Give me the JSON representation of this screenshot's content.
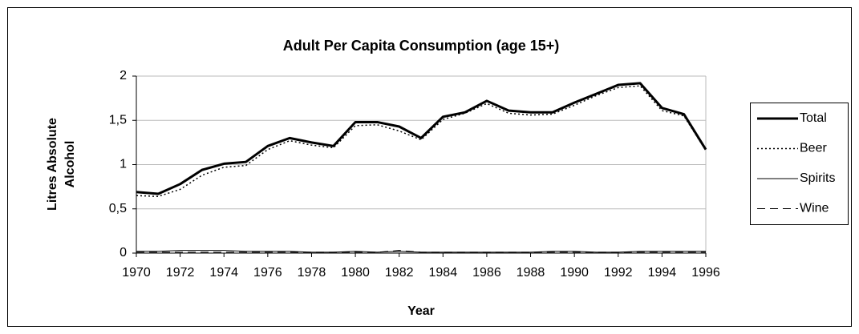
{
  "chart_data": {
    "type": "line",
    "title": "Adult Per Capita Consumption (age 15+)",
    "xlabel": "Year",
    "ylabel": [
      "Litres Absolute",
      "Alcohol"
    ],
    "x": [
      1970,
      1971,
      1972,
      1973,
      1974,
      1975,
      1976,
      1977,
      1978,
      1979,
      1980,
      1981,
      1982,
      1983,
      1984,
      1985,
      1986,
      1987,
      1988,
      1989,
      1990,
      1991,
      1992,
      1993,
      1994,
      1995,
      1996
    ],
    "xlim": [
      1970,
      1996
    ],
    "xticks": [
      1970,
      1972,
      1974,
      1976,
      1978,
      1980,
      1982,
      1984,
      1986,
      1988,
      1990,
      1992,
      1994,
      1996
    ],
    "ylim": [
      0,
      2
    ],
    "yticks": [
      0,
      {
        "value": 0.5,
        "label": "0,5"
      },
      1,
      {
        "value": 1.5,
        "label": "1,5"
      },
      2
    ],
    "grid": true,
    "legend": "right",
    "series": [
      {
        "name": "Total",
        "color": "#000000",
        "width": 3,
        "dash": "none",
        "values": [
          0.69,
          0.67,
          0.78,
          0.94,
          1.01,
          1.03,
          1.21,
          1.3,
          1.25,
          1.21,
          1.48,
          1.48,
          1.43,
          1.3,
          1.54,
          1.59,
          1.72,
          1.61,
          1.59,
          1.59,
          1.7,
          1.8,
          1.9,
          1.92,
          1.64,
          1.57,
          1.17
        ]
      },
      {
        "name": "Beer",
        "color": "#000000",
        "width": 1.5,
        "dash": "2 3",
        "values": [
          0.65,
          0.64,
          0.72,
          0.88,
          0.97,
          0.99,
          1.17,
          1.27,
          1.22,
          1.19,
          1.44,
          1.45,
          1.38,
          1.28,
          1.51,
          1.58,
          1.69,
          1.58,
          1.56,
          1.57,
          1.67,
          1.78,
          1.87,
          1.89,
          1.61,
          1.55,
          1.16
        ]
      },
      {
        "name": "Spirits",
        "color": "#000000",
        "width": 1,
        "dash": "none",
        "values": [
          0.02,
          0.02,
          0.03,
          0.03,
          0.03,
          0.02,
          0.02,
          0.02,
          0.01,
          0.01,
          0.02,
          0.01,
          0.02,
          0.01,
          0.01,
          0.01,
          0.01,
          0.01,
          0.01,
          0.02,
          0.02,
          0.01,
          0.01,
          0.02,
          0.02,
          0.02,
          0.02
        ]
      },
      {
        "name": "Wine",
        "color": "#000000",
        "width": 1,
        "dash": "10 6",
        "values": [
          0.01,
          0.01,
          0.01,
          0.01,
          0.01,
          0.01,
          0.01,
          0.01,
          0.01,
          0.01,
          0.01,
          0.01,
          0.03,
          0.01,
          0.01,
          0.01,
          0.01,
          0.01,
          0.01,
          0.01,
          0.01,
          0.01,
          0.01,
          0.01,
          0.01,
          0.01,
          0.01
        ]
      }
    ]
  }
}
